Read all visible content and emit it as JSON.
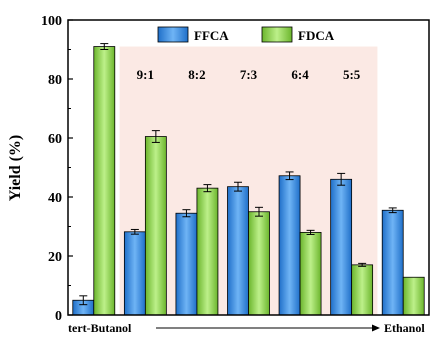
{
  "chart_data": {
    "type": "bar",
    "ylabel": "Yield (%)",
    "ylim": [
      0,
      100
    ],
    "yticks": [
      0,
      20,
      40,
      60,
      80,
      100
    ],
    "categories": [
      "tert-Butanol",
      "9:1",
      "8:2",
      "7:3",
      "6:4",
      "5:5",
      "Ethanol"
    ],
    "ratio_labels": [
      "9:1",
      "8:2",
      "7:3",
      "6:4",
      "5:5"
    ],
    "x_start_label": "tert-Butanol",
    "x_end_label": "Ethanol",
    "legend": {
      "placement": "top-center"
    },
    "series": [
      {
        "name": "FFCA",
        "color": "#3d8fe0",
        "values": [
          5,
          28.2,
          34.5,
          43.5,
          47.2,
          46,
          35.5
        ],
        "errors": [
          1.5,
          0.8,
          1.2,
          1.5,
          1.3,
          2,
          0.8
        ]
      },
      {
        "name": "FDCA",
        "color": "#8fd14a",
        "values": [
          91,
          60.5,
          43,
          35,
          28,
          17,
          12.8
        ],
        "errors": [
          1,
          2,
          1.2,
          1.5,
          0.7,
          0.5,
          0
        ]
      }
    ],
    "highlight_region": {
      "from_category": "9:1",
      "to_category": "5:5",
      "color": "#fbe9e4"
    }
  }
}
